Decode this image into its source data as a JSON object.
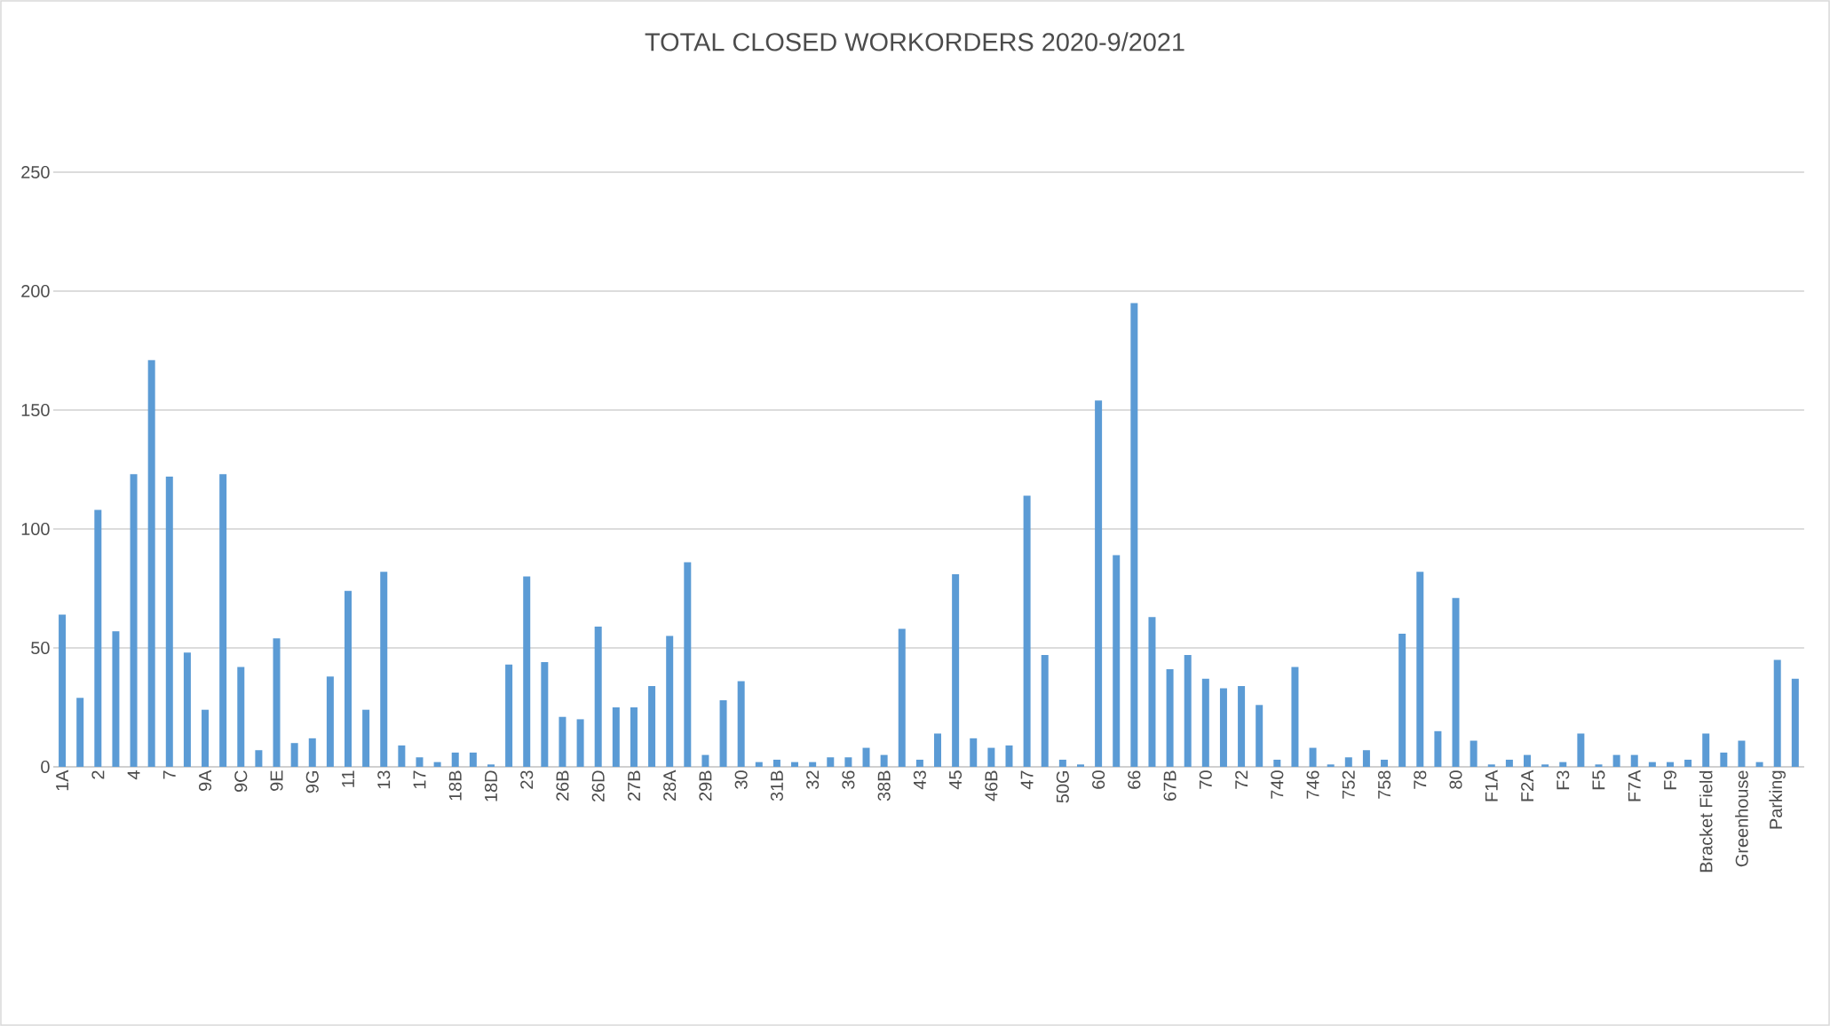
{
  "chart_data": {
    "type": "bar",
    "title": "TOTAL CLOSED WORKORDERS 2020-9/2021",
    "categories": [
      "1A",
      null,
      "2",
      null,
      "4",
      null,
      "7",
      null,
      "9A",
      null,
      "9C",
      null,
      "9E",
      null,
      "9G",
      null,
      "11",
      null,
      "13",
      null,
      "17",
      null,
      "18B",
      null,
      "18D",
      null,
      "23",
      null,
      "26B",
      null,
      "26D",
      null,
      "27B",
      null,
      "28A",
      null,
      "29B",
      null,
      "30",
      null,
      "31B",
      null,
      "32",
      null,
      "36",
      null,
      "38B",
      null,
      "43",
      null,
      "45",
      null,
      "46B",
      null,
      "47",
      null,
      "50G",
      null,
      "60",
      null,
      "66",
      null,
      "67B",
      null,
      "70",
      null,
      "72",
      null,
      "740",
      null,
      "746",
      null,
      "752",
      null,
      "758",
      null,
      "78",
      null,
      "80",
      null,
      "F1A",
      null,
      "F2A",
      null,
      "F3",
      null,
      "F5",
      null,
      "F7A",
      null,
      "F9",
      null,
      "Bracket Field",
      null,
      "Greenhouse",
      null,
      "Parking",
      null
    ],
    "values": [
      64,
      29,
      108,
      57,
      123,
      171,
      122,
      48,
      24,
      123,
      42,
      7,
      54,
      10,
      12,
      38,
      74,
      24,
      82,
      9,
      4,
      2,
      6,
      6,
      1,
      43,
      80,
      44,
      21,
      20,
      59,
      25,
      25,
      34,
      55,
      86,
      5,
      28,
      36,
      2,
      3,
      2,
      2,
      4,
      4,
      8,
      5,
      58,
      3,
      14,
      81,
      12,
      8,
      9,
      114,
      47,
      3,
      1,
      154,
      89,
      195,
      63,
      41,
      47,
      37,
      33,
      34,
      26,
      3,
      42,
      8,
      1,
      4,
      7,
      3,
      56,
      82,
      15,
      71,
      11,
      1,
      3,
      5,
      1,
      2,
      14,
      1,
      5,
      5,
      2,
      2,
      3,
      14,
      6,
      11,
      2,
      45,
      37
    ],
    "color": "#5b9bd5",
    "ylim": [
      0,
      250
    ],
    "yticks": [
      0,
      50,
      100,
      150,
      200,
      250
    ],
    "grid": "y"
  }
}
